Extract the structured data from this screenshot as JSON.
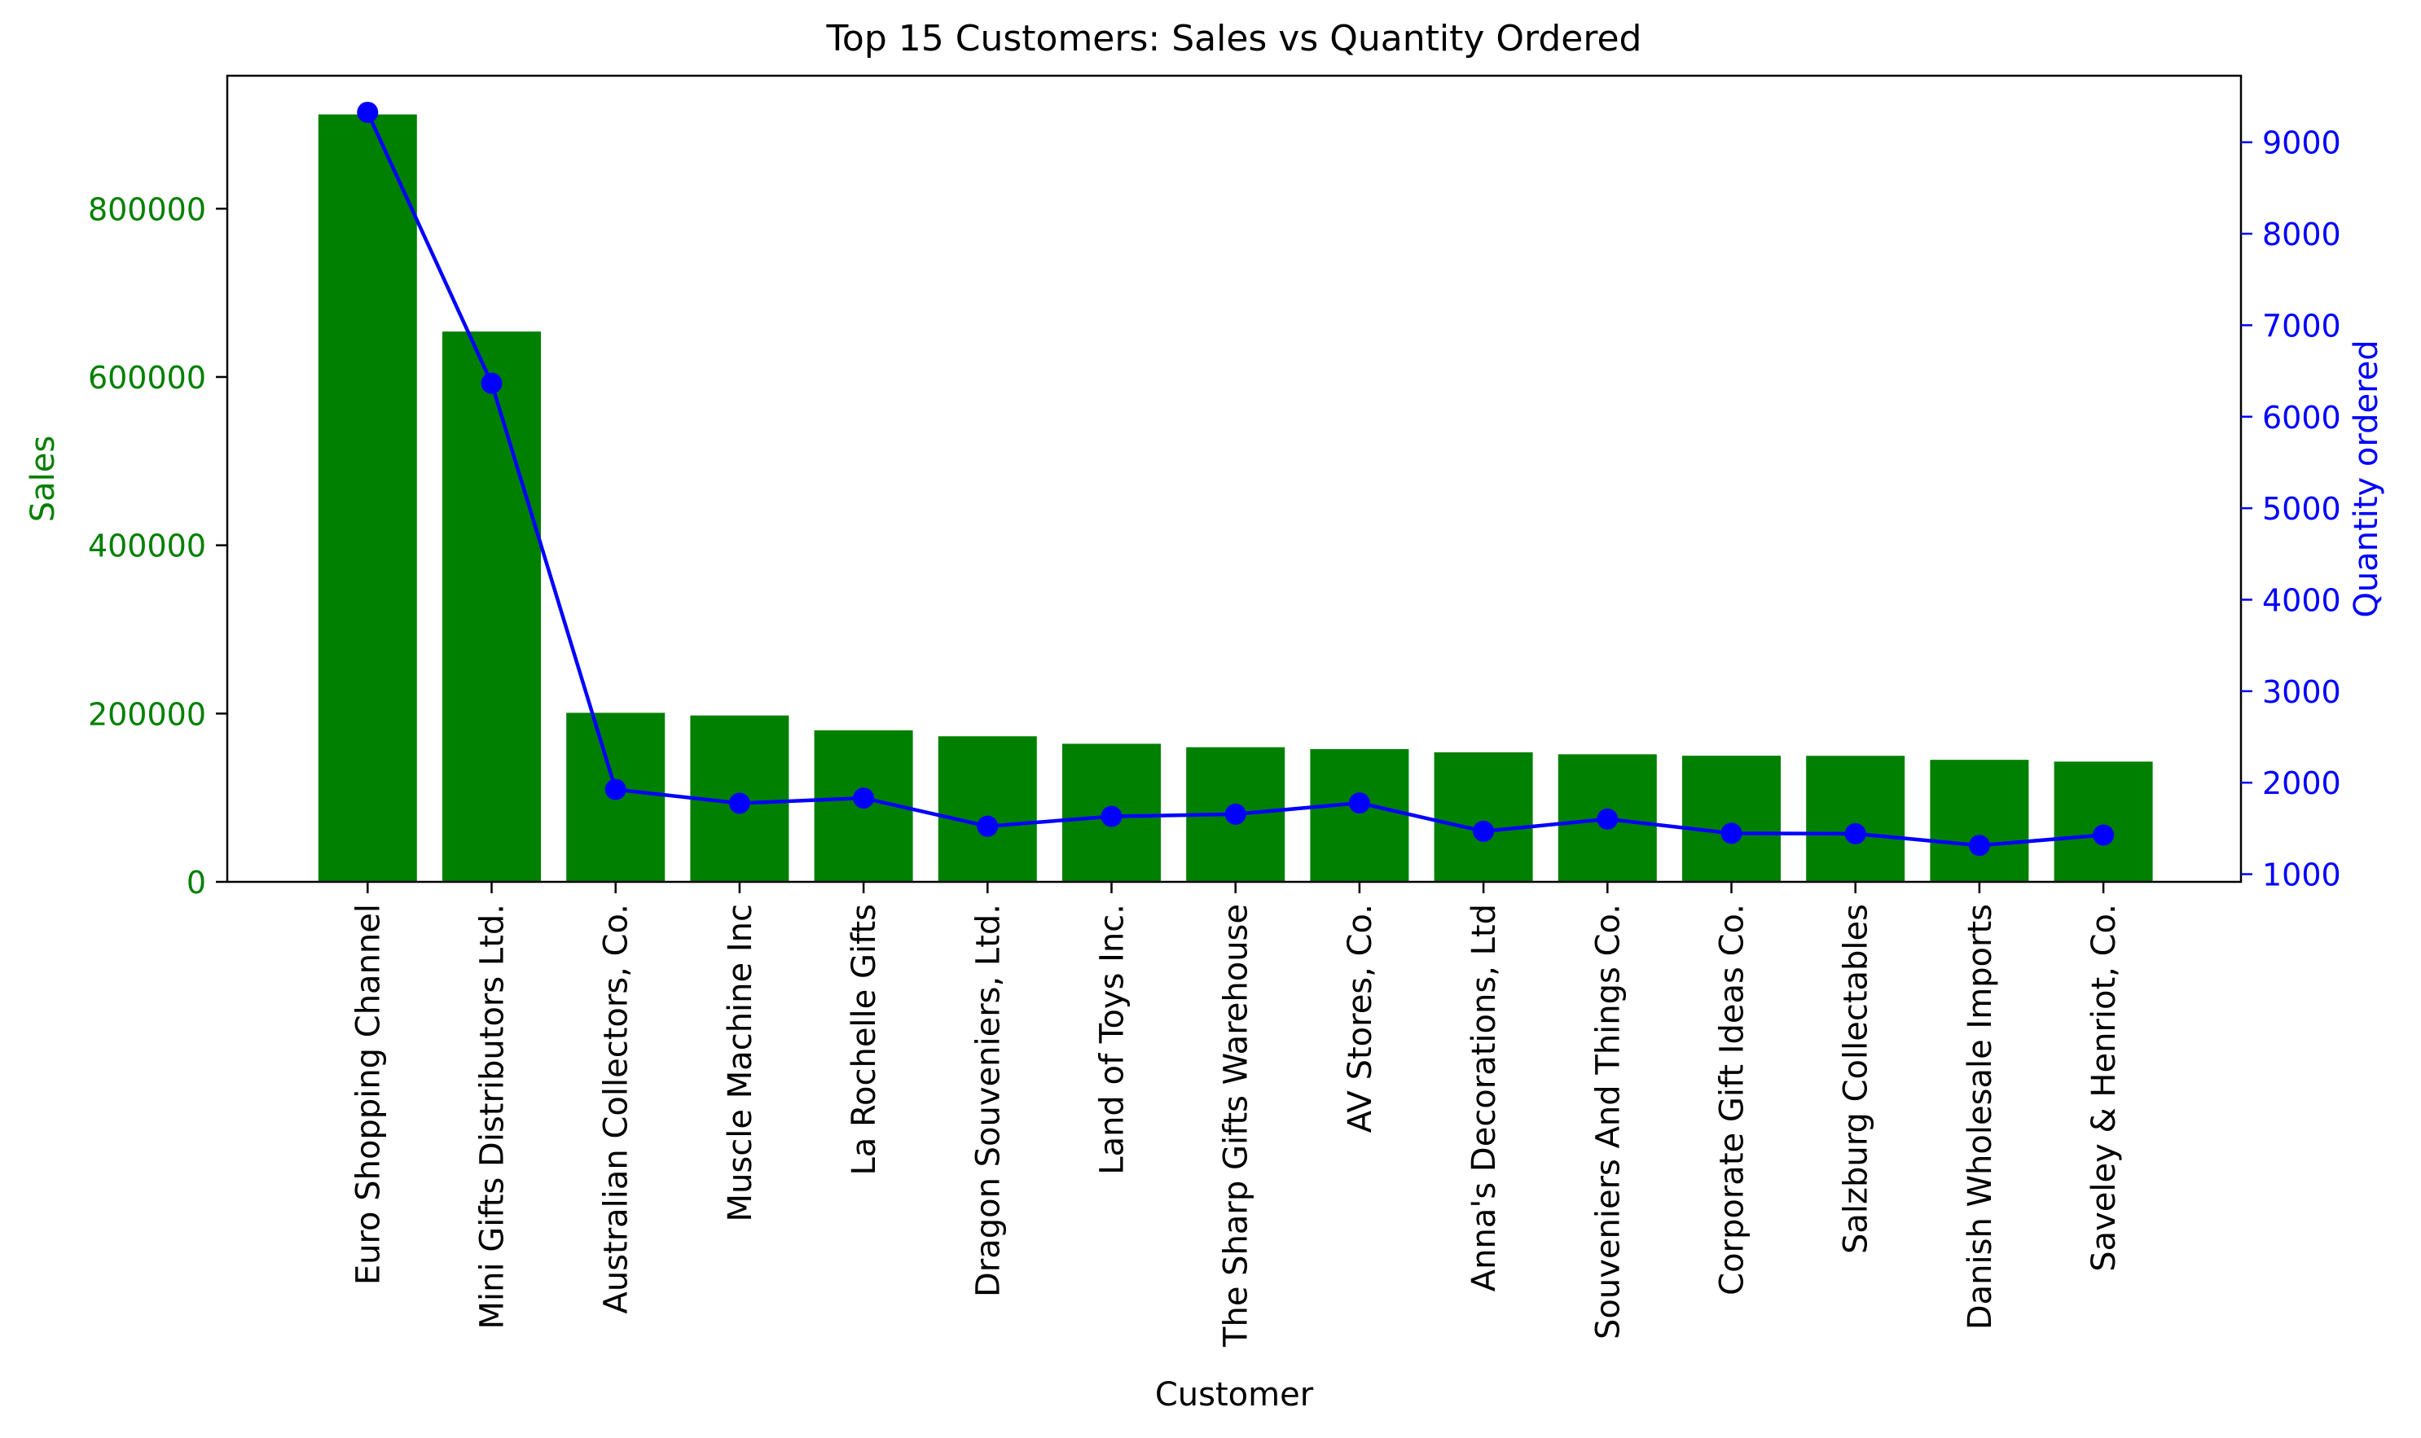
{
  "chart_data": {
    "type": "bar",
    "title": "Top 15 Customers: Sales vs Quantity Ordered",
    "xlabel": "Customer",
    "categories": [
      "Euro Shopping Channel",
      "Mini Gifts Distributors Ltd.",
      "Australian Collectors, Co.",
      "Muscle Machine Inc",
      "La Rochelle Gifts",
      "Dragon Souveniers, Ltd.",
      "Land of Toys Inc.",
      "The Sharp Gifts Warehouse",
      "AV Stores, Co.",
      "Anna's Decorations, Ltd",
      "Souveniers And Things Co.",
      "Corporate Gift Ideas Co.",
      "Salzburg Collectables",
      "Danish Wholesale Imports",
      "Saveley & Henriot, Co."
    ],
    "series": [
      {
        "type": "bar",
        "axis": "left",
        "color": "#008000",
        "values": [
          912000,
          654000,
          200900,
          197700,
          180100,
          172990,
          164100,
          160000,
          157800,
          154000,
          151600,
          149900,
          149800,
          145000,
          142900
        ]
      },
      {
        "type": "line",
        "axis": "right",
        "color": "#0000ff",
        "marker": "circle",
        "values": [
          9327,
          6366,
          1926,
          1775,
          1832,
          1524,
          1631,
          1656,
          1778,
          1469,
          1602,
          1447,
          1442,
          1314,
          1428
        ]
      }
    ],
    "y_left": {
      "label": "Sales",
      "color": "#008000",
      "ylim": [
        0,
        958000
      ],
      "ticks": [
        0,
        200000,
        400000,
        600000,
        800000
      ]
    },
    "y_right": {
      "label": "Quantity ordered",
      "color": "#0000ff",
      "ylim": [
        916,
        9727
      ],
      "ticks": [
        1000,
        2000,
        3000,
        4000,
        5000,
        6000,
        7000,
        8000,
        9000
      ]
    },
    "grid": false,
    "legend": "none"
  }
}
